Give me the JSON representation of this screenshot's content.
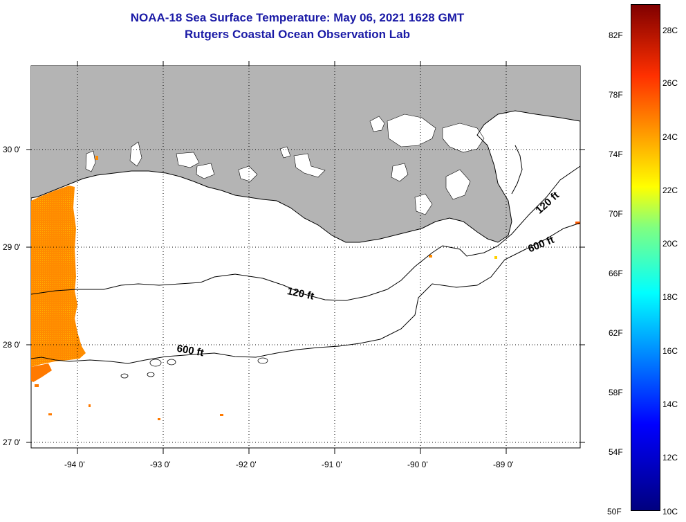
{
  "title": {
    "line1": "NOAA-18 Sea Surface Temperature:  May 06, 2021 1628 GMT",
    "line2": "Rutgers Coastal Ocean Observation Lab"
  },
  "axes": {
    "lat_labels": [
      "30 0'",
      "29 0'",
      "28 0'",
      "27 0'"
    ],
    "lon_labels": [
      "-94 0'",
      "-93 0'",
      "-92 0'",
      "-91 0'",
      "-90 0'",
      "-89 0'"
    ]
  },
  "contours": {
    "c120_label_1": "120 ft",
    "c120_label_2": "120 ft",
    "c600_label_1": "600 ft",
    "c600_label_2": "600 ft"
  },
  "colorbar": {
    "f_labels": [
      "82F",
      "78F",
      "74F",
      "70F",
      "66F",
      "62F",
      "58F",
      "54F",
      "50F"
    ],
    "c_labels": [
      "28C",
      "26C",
      "24C",
      "22C",
      "20C",
      "18C",
      "16C",
      "14C",
      "12C",
      "10C"
    ]
  },
  "colors": {
    "title": "#1a1aa6",
    "land": "#b4b4b4",
    "sst_warm": "#ff7a00"
  }
}
